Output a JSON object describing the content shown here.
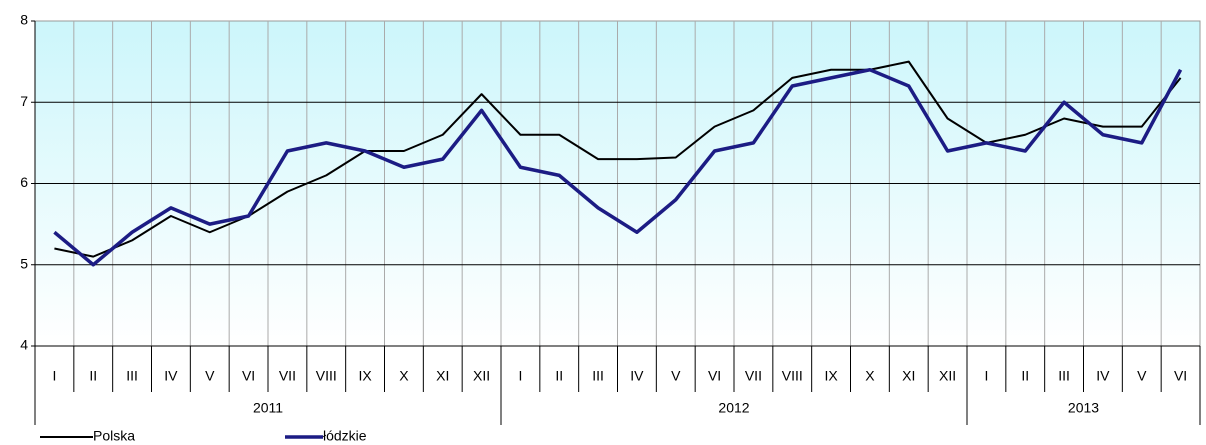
{
  "chart_data": {
    "type": "line",
    "categories": [
      "I",
      "II",
      "III",
      "IV",
      "V",
      "VI",
      "VII",
      "VIII",
      "IX",
      "X",
      "XI",
      "XII",
      "I",
      "II",
      "III",
      "IV",
      "V",
      "VI",
      "VII",
      "VIII",
      "IX",
      "X",
      "XI",
      "XII",
      "I",
      "II",
      "III",
      "IV",
      "V",
      "VI"
    ],
    "category_groups": [
      {
        "name": "2011",
        "size": 12
      },
      {
        "name": "2012",
        "size": 12
      },
      {
        "name": "2013",
        "size": 6
      }
    ],
    "series": [
      {
        "name": "Polska",
        "color": "#000000",
        "values": [
          5.2,
          5.1,
          5.3,
          5.6,
          5.4,
          5.6,
          5.9,
          6.1,
          6.4,
          6.4,
          6.6,
          7.1,
          6.6,
          6.6,
          6.3,
          6.3,
          6.32,
          6.7,
          6.9,
          7.3,
          7.4,
          7.4,
          7.5,
          6.8,
          6.5,
          6.6,
          6.8,
          6.7,
          6.7,
          7.3
        ]
      },
      {
        "name": "łódzkie",
        "color": "#1c1c84",
        "values": [
          5.4,
          5.0,
          5.4,
          5.7,
          5.5,
          5.6,
          6.4,
          6.5,
          6.4,
          6.2,
          6.3,
          6.9,
          6.2,
          6.1,
          5.7,
          5.4,
          5.8,
          6.4,
          6.5,
          7.2,
          7.3,
          7.4,
          7.2,
          6.4,
          6.5,
          6.4,
          7.0,
          6.6,
          6.5,
          7.4
        ]
      }
    ],
    "ylim": [
      4,
      8
    ],
    "yticks": [
      4,
      5,
      6,
      7,
      8
    ],
    "grid": true,
    "legend": "bottom-left"
  }
}
